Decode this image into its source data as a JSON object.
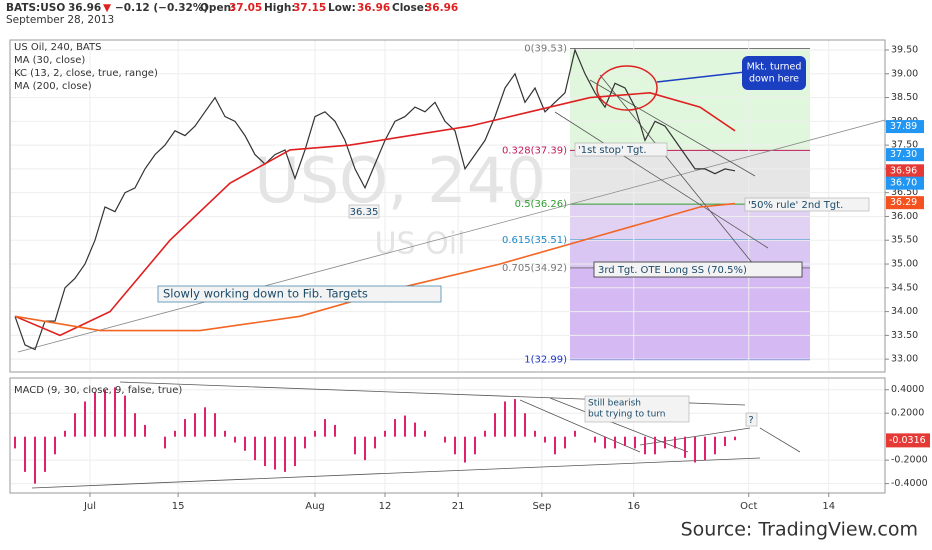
{
  "chart_data": {
    "type": "line",
    "ticker": "BATS:USO",
    "last": 36.96,
    "change_arrow": "▼",
    "change": "−0.12 (−0.32%)",
    "ohlc": [
      {
        "label": "Open:",
        "value": 37.05
      },
      {
        "label": "High:",
        "value": 37.15
      },
      {
        "label": "Low:",
        "value": 36.96
      },
      {
        "label": "Close:",
        "value": 36.96
      }
    ],
    "date": "September 28, 2013",
    "kc_label": "KC (13, 2, close, true, range)",
    "watermark": [
      "USO, 240",
      "US Oil"
    ],
    "source": "Source: TradingView.com",
    "xlim": [
      0,
      140
    ],
    "xticks": [
      {
        "value": 12.8,
        "label": "Jul"
      },
      {
        "value": 26.9,
        "label": "15"
      },
      {
        "value": 48.8,
        "label": "Aug"
      },
      {
        "value": 60,
        "label": "12"
      },
      {
        "value": 71.7,
        "label": "21"
      },
      {
        "value": 85.1,
        "label": "Sep"
      },
      {
        "value": 99.8,
        "label": "16"
      },
      {
        "value": 118.2,
        "label": "Oct"
      },
      {
        "value": 131,
        "label": "14"
      }
    ],
    "ylim": [
      32.73,
      39.71
    ],
    "yticks": [
      {
        "value": 33,
        "label": "33.00"
      },
      {
        "value": 33.5,
        "label": "33.50"
      },
      {
        "value": 34,
        "label": "34.00"
      },
      {
        "value": 34.5,
        "label": "34.50"
      },
      {
        "value": 35,
        "label": "35.00"
      },
      {
        "value": 35.5,
        "label": "35.50"
      },
      {
        "value": 36,
        "label": "36.00"
      },
      {
        "value": 36.5,
        "label": "36.50"
      },
      {
        "value": 37,
        "label": "37.00"
      },
      {
        "value": 37.5,
        "label": "37.50"
      },
      {
        "value": 38,
        "label": "38.00"
      },
      {
        "value": 38.5,
        "label": "38.50"
      },
      {
        "value": 39,
        "label": "39.00"
      },
      {
        "value": 39.5,
        "label": "39.50"
      }
    ],
    "grid": true,
    "x": [
      0.8,
      2.4,
      4,
      5.6,
      7.2,
      8.8,
      10.4,
      12,
      13.6,
      15.2,
      16.8,
      18.4,
      20,
      21.6,
      23.2,
      24.8,
      26.4,
      28,
      29.6,
      31.2,
      32.8,
      34.4,
      36,
      37.6,
      39.2,
      40.8,
      42.4,
      44,
      45.6,
      47.2,
      48.8,
      50.4,
      52,
      53.6,
      55.2,
      56.8,
      58.4,
      60,
      61.6,
      63.2,
      64.8,
      66.4,
      68,
      69.6,
      71.2,
      72.8,
      74.4,
      76,
      77.6,
      79.2,
      80.8,
      82.4,
      84,
      85.6,
      87.2,
      88.8,
      90.4,
      92,
      93.6,
      95.2,
      96.8,
      98.4,
      100,
      101.6,
      103.2,
      104.8,
      106.4,
      108,
      109.6,
      111.2,
      112.8,
      114.4,
      116
    ],
    "series": [
      {
        "name": "US Oil, 240, BATS",
        "color": "#333333",
        "values": [
          33.9,
          33.3,
          33.2,
          33.8,
          33.8,
          34.5,
          34.7,
          35,
          35.5,
          36.2,
          36.1,
          36.5,
          36.6,
          37,
          37.3,
          37.5,
          37.8,
          37.7,
          37.9,
          38.2,
          38.5,
          38.1,
          38,
          37.7,
          37.3,
          37.1,
          37.3,
          37.4,
          36.8,
          37.4,
          38.1,
          38.2,
          38,
          37.6,
          37,
          36.6,
          37.1,
          37.6,
          38,
          38.1,
          38.3,
          38.2,
          38.4,
          38,
          37.8,
          37,
          37.3,
          37.6,
          38.1,
          38.7,
          39,
          38.4,
          38.7,
          38.2,
          38.4,
          38.6,
          39.5,
          39,
          38.6,
          38.3,
          38.8,
          38.7,
          38.3,
          37.6,
          38,
          37.9,
          37.6,
          37.3,
          37,
          37,
          36.9,
          37,
          36.96
        ]
      },
      {
        "name": "MA (30, close)",
        "color": "#e02020",
        "x": [
          0.8,
          8,
          16,
          25.6,
          35.2,
          44.8,
          54.4,
          64,
          73.6,
          83.2,
          92.8,
          102.4,
          110.4,
          116
        ],
        "values": [
          33.9,
          33.5,
          34,
          35.5,
          36.7,
          37.4,
          37.5,
          37.7,
          37.9,
          38.2,
          38.5,
          38.6,
          38.3,
          37.8
        ]
      },
      {
        "name": "MA (200, close)",
        "color": "#f26522",
        "x": [
          0.8,
          14.4,
          30.4,
          46.4,
          62.4,
          78.4,
          94.4,
          110.4,
          116
        ],
        "values": [
          33.9,
          33.6,
          33.6,
          33.9,
          34.5,
          35,
          35.6,
          36.2,
          36.27
        ]
      }
    ],
    "price_tags": [
      {
        "value": 37.89,
        "label": "37.89",
        "color": "#2196f3"
      },
      {
        "value": 37.3,
        "label": "37.30",
        "color": "#2196f3"
      },
      {
        "value": 36.96,
        "label": "36.96",
        "color": "#e53935"
      },
      {
        "value": 36.7,
        "label": "36.70",
        "color": "#2196f3"
      },
      {
        "value": 36.29,
        "label": "36.29",
        "color": "#f4511e"
      }
    ],
    "fib_levels": [
      {
        "value": 39.53,
        "label": "0(39.53)",
        "color": "#777777"
      },
      {
        "value": 37.39,
        "label": "0.328(37.39)",
        "color": "#c2185b"
      },
      {
        "value": 36.26,
        "label": "0.5(36.26)",
        "color": "#2e9e2e"
      },
      {
        "value": 35.51,
        "label": "0.615(35.51)",
        "color": "#1e88c8"
      },
      {
        "value": 34.92,
        "label": "0.705(34.92)",
        "color": "#777777"
      },
      {
        "value": 32.99,
        "label": "1(32.99)",
        "color": "#1a33c8"
      }
    ],
    "annotations": {
      "turned": [
        "Mkt. turned",
        "down here"
      ],
      "first": "'1st stop' Tgt.",
      "second": "'50% rule' 2nd Tgt.",
      "third": "3rd Tgt. OTE Long SS (70.5%)",
      "slowly": "Slowly working down to Fib. Targets",
      "low": "36.35",
      "bearish": [
        "Still bearish",
        "but trying to turn"
      ],
      "question": "?"
    },
    "macd": {
      "title": "MACD (9, 30, close, 9, false, true)",
      "color": "#e0206a",
      "ylim": [
        -0.48,
        0.5
      ],
      "yticks": [
        {
          "value": 0.4,
          "label": "0.4000"
        },
        {
          "value": 0.2,
          "label": "0.2000"
        },
        {
          "value": -0.2,
          "label": "-0.2000"
        },
        {
          "value": -0.4,
          "label": "-0.4000"
        }
      ],
      "tag": {
        "value": -0.0316,
        "label": "-0.0316"
      },
      "values": [
        -0.1,
        -0.3,
        -0.4,
        -0.3,
        -0.15,
        0.05,
        0.2,
        0.3,
        0.38,
        0.4,
        0.42,
        0.35,
        0.2,
        0.1,
        0,
        -0.1,
        0.05,
        0.15,
        0.2,
        0.25,
        0.2,
        0.05,
        -0.05,
        -0.12,
        -0.2,
        -0.25,
        -0.28,
        -0.3,
        -0.25,
        -0.1,
        0.05,
        0.15,
        0.1,
        0,
        -0.15,
        -0.2,
        -0.1,
        0.05,
        0.15,
        0.18,
        0.12,
        0.05,
        0,
        -0.05,
        -0.15,
        -0.22,
        -0.15,
        0.05,
        0.2,
        0.3,
        0.32,
        0.2,
        0.05,
        -0.05,
        -0.15,
        -0.1,
        0.05,
        0,
        -0.05,
        -0.1,
        -0.1,
        -0.08,
        -0.1,
        -0.15,
        -0.15,
        -0.1,
        -0.1,
        -0.18,
        -0.22,
        -0.2,
        -0.15,
        -0.08,
        -0.03
      ]
    }
  }
}
